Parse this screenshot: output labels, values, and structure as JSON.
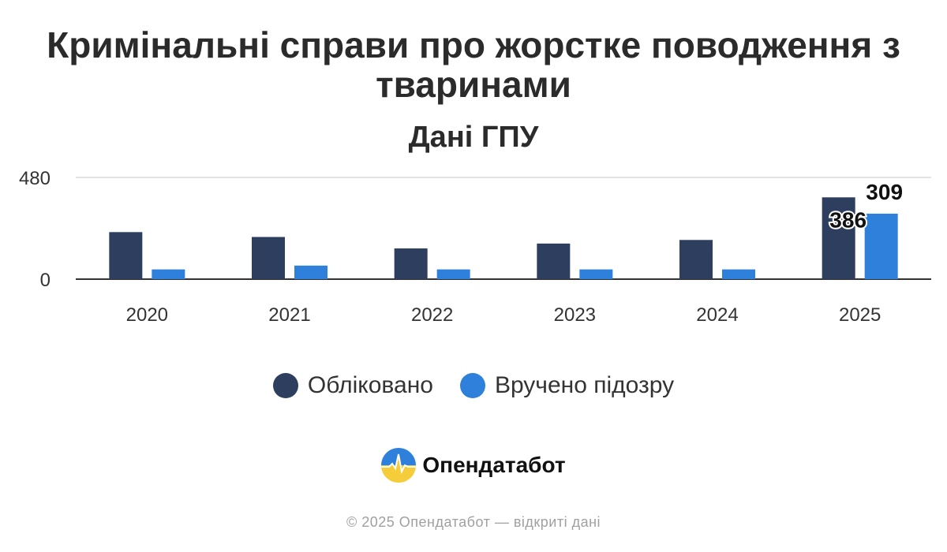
{
  "chart_data": {
    "type": "bar",
    "title": "Кримінальні справи про жорстке поводження з тваринами",
    "subtitle": "Дані ГПУ",
    "categories": [
      "2020",
      "2021",
      "2022",
      "2023",
      "2024",
      "2025"
    ],
    "series": [
      {
        "name": "Обліковано",
        "color": "#2d3e5e",
        "values": [
          222,
          199,
          145,
          168,
          185,
          386
        ]
      },
      {
        "name": "Вручено підозру",
        "color": "#2f80db",
        "values": [
          46,
          64,
          46,
          46,
          46,
          309
        ]
      }
    ],
    "data_labels": [
      {
        "category": "2025",
        "series": "Обліковано",
        "text": "386"
      },
      {
        "category": "2025",
        "series": "Вручено підозру",
        "text": "309"
      }
    ],
    "y_ticks": [
      "0",
      "480"
    ],
    "ylim": [
      0,
      480
    ],
    "xlabel": "",
    "ylabel": "",
    "grid": true,
    "legend_position": "bottom"
  },
  "brand": {
    "name": "Опендатабот"
  },
  "footer": {
    "text": "© 2025 Опендатабот — відкриті дані"
  }
}
